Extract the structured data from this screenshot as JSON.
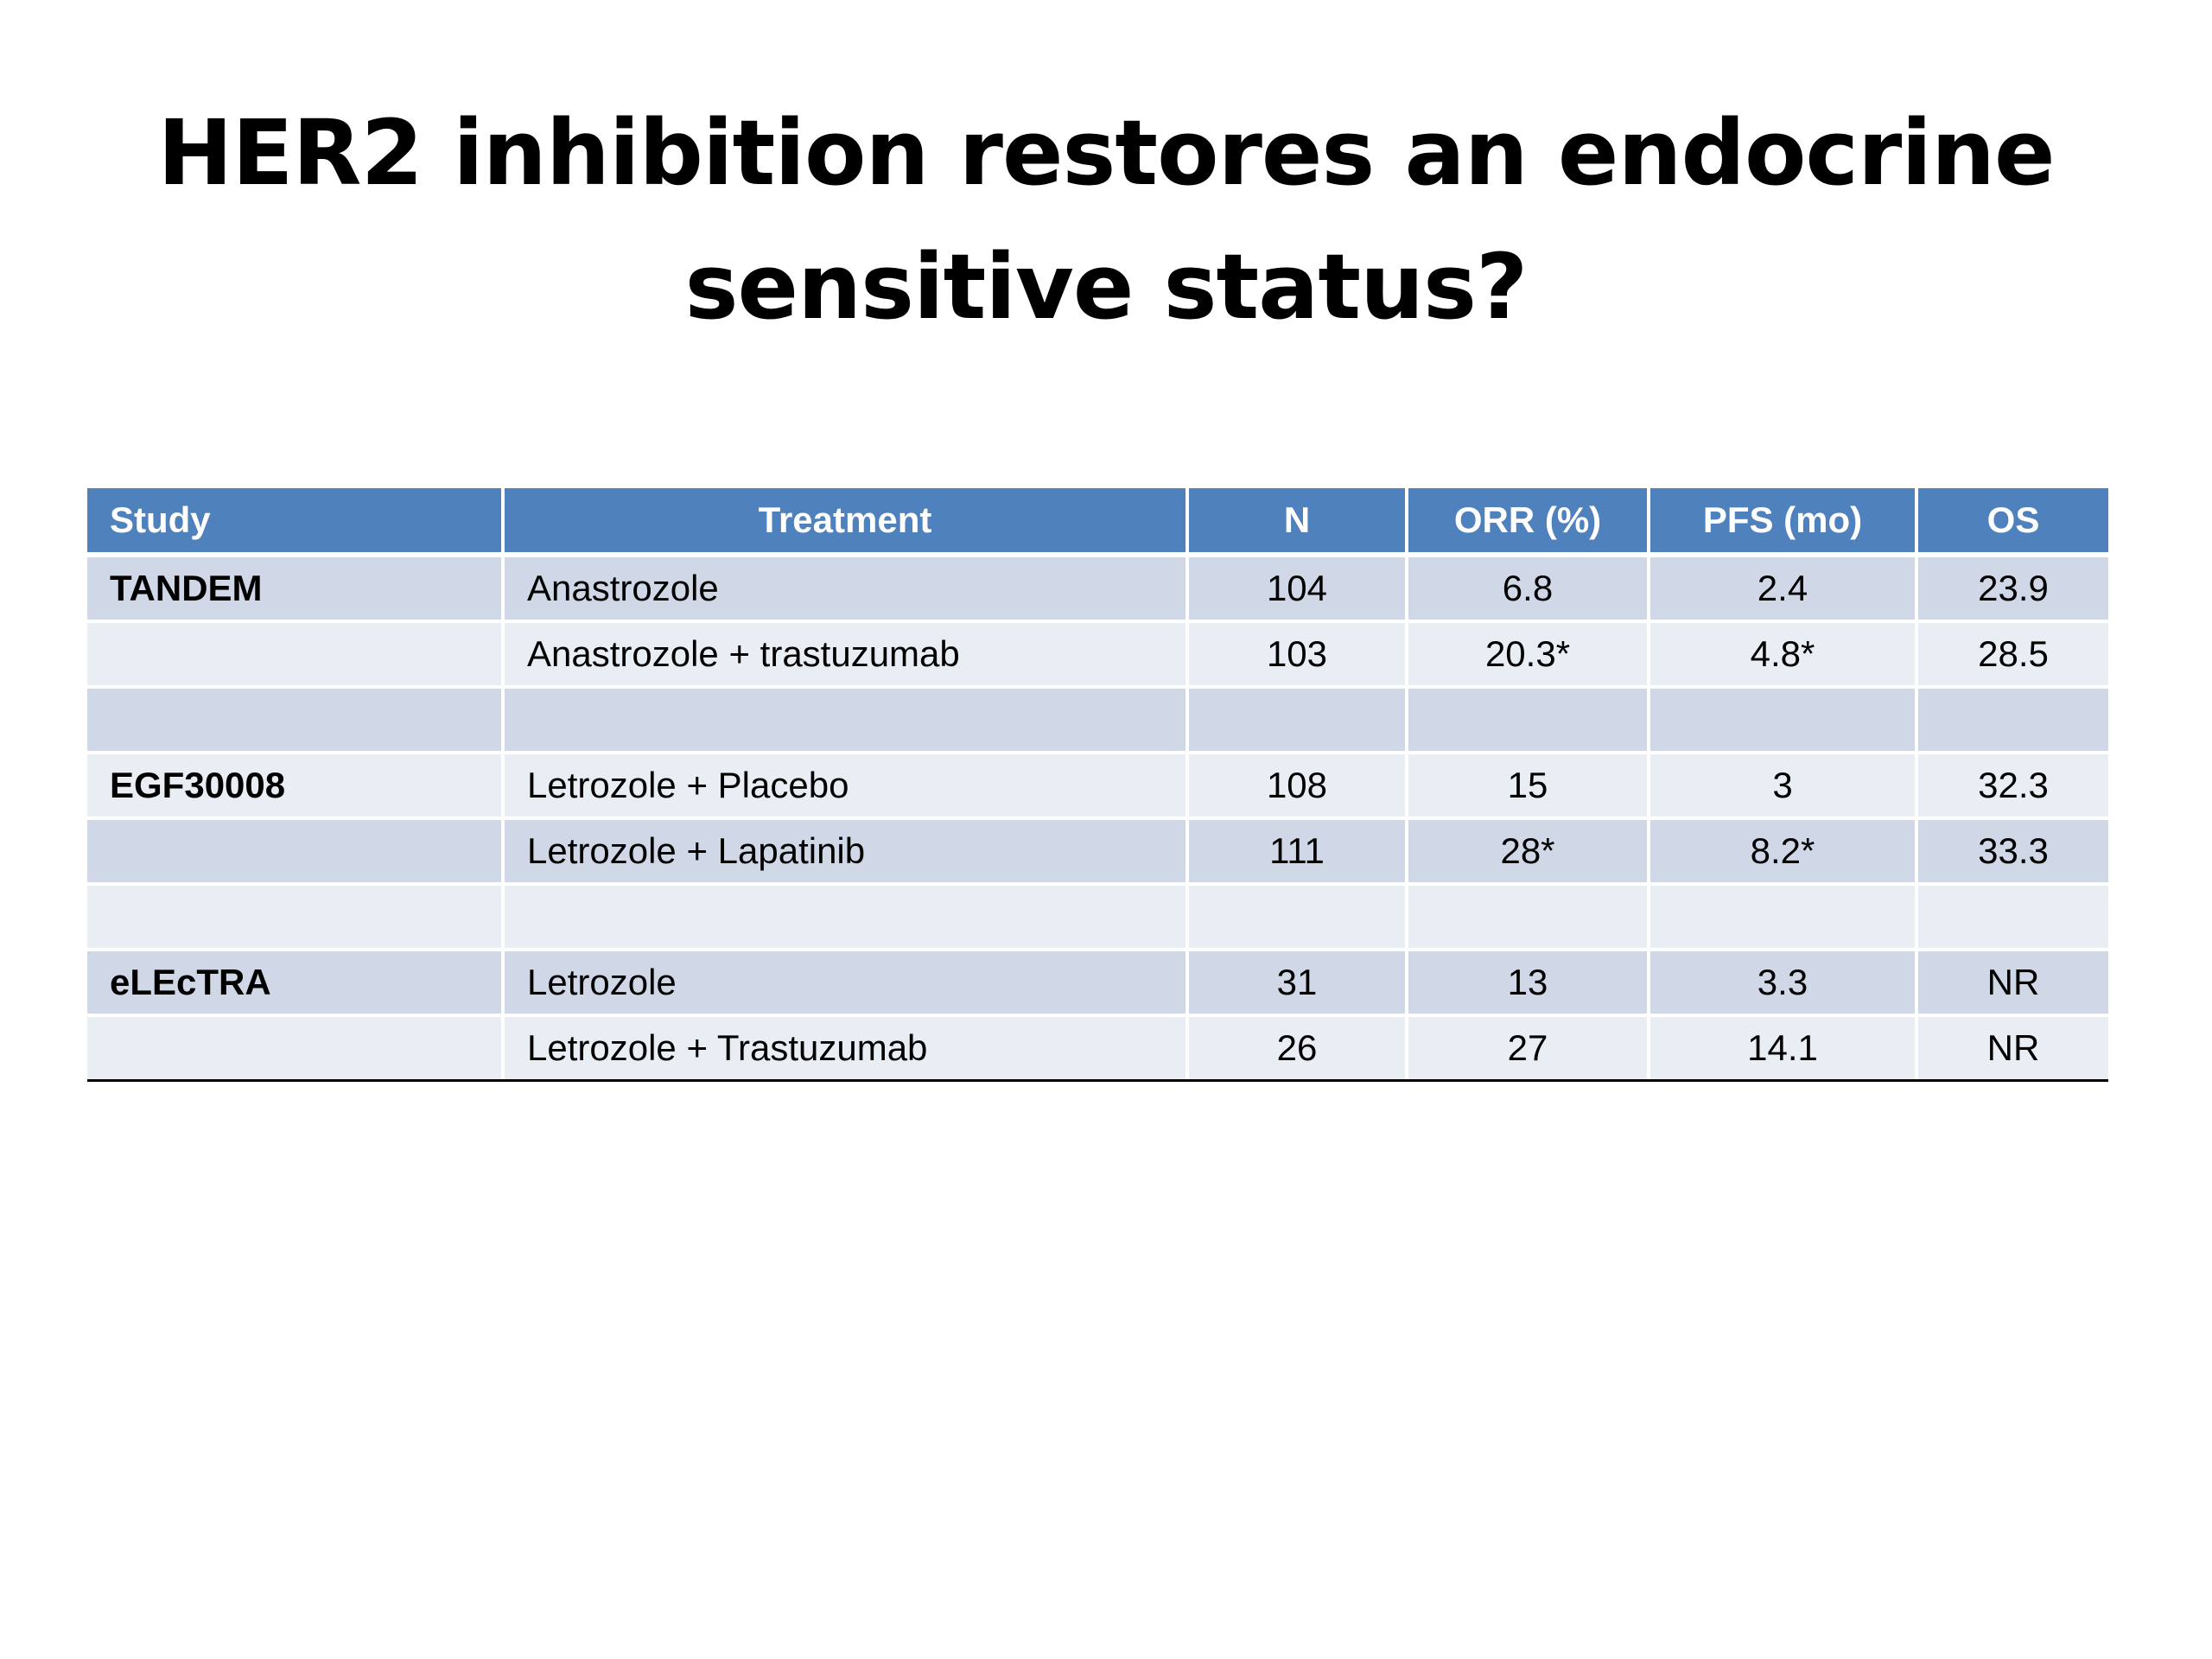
{
  "title": {
    "line1": "HER2 inhibition restores an endocrine",
    "line2": "sensitive status?"
  },
  "table": {
    "headers": [
      "Study",
      "Treatment",
      "N",
      "ORR (%)",
      "PFS (mo)",
      "OS"
    ],
    "rows": [
      [
        "TANDEM",
        "Anastrozole",
        "104",
        "6.8",
        "2.4",
        "23.9"
      ],
      [
        "",
        "Anastrozole + trastuzumab",
        "103",
        "20.3*",
        "4.8*",
        "28.5"
      ],
      [
        "",
        "",
        "",
        "",
        "",
        ""
      ],
      [
        "EGF30008",
        "Letrozole + Placebo",
        "108",
        "15",
        "3",
        "32.3"
      ],
      [
        "",
        "Letrozole + Lapatinib",
        "111",
        "28*",
        "8.2*",
        "33.3"
      ],
      [
        "",
        "",
        "",
        "",
        "",
        ""
      ],
      [
        "eLEcTRA",
        "Letrozole",
        "31",
        "13",
        "3.3",
        "NR"
      ],
      [
        "",
        "Letrozole + Trastuzumab",
        "26",
        "27",
        "14.1",
        "NR"
      ]
    ]
  },
  "colors": {
    "header_bg": "#4f81bd",
    "row_dark": "#d0d8e8",
    "row_light": "#e9edf4"
  }
}
